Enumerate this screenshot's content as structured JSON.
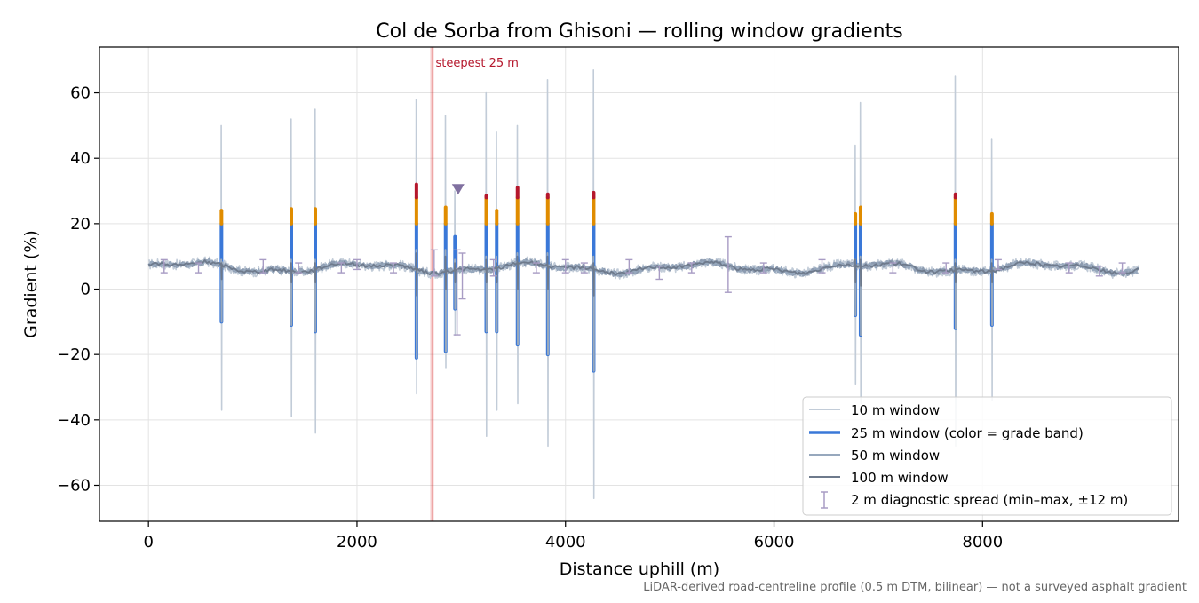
{
  "chart_data": {
    "type": "line",
    "title": "Col de Sorba from Ghisoni — rolling window gradients",
    "xlabel": "Distance uphill (m)",
    "ylabel": "Gradient (%)",
    "xlim": [
      -470,
      9880
    ],
    "ylim": [
      -71,
      74
    ],
    "x_ticks": [
      0,
      2000,
      4000,
      6000,
      8000
    ],
    "x_tick_labels": [
      "0",
      "2000",
      "4000",
      "6000",
      "8000"
    ],
    "y_ticks": [
      -60,
      -40,
      -20,
      0,
      20,
      40,
      60
    ],
    "y_tick_labels": [
      "−60",
      "−40",
      "−20",
      "0",
      "20",
      "40",
      "60"
    ],
    "grid": true,
    "x_range": [
      0,
      9500
    ],
    "baseline_gradient": 6.5,
    "steepest_marker": {
      "x": 2720,
      "label": "steepest 25 m",
      "color": "#d62728"
    },
    "triangle_marker": {
      "x": 2970,
      "y": 30.5,
      "color": "#8070a0"
    },
    "grade_bands": [
      {
        "min": -100,
        "max": 20,
        "color": "#3a78d8"
      },
      {
        "min": 20,
        "max": 28,
        "color": "#e08c00"
      },
      {
        "min": 28,
        "max": 100,
        "color": "#b5172c"
      }
    ],
    "spikes": [
      {
        "x": 700,
        "w10_max": 50,
        "w10_min": -37,
        "w25_max": 24,
        "w25_min": -10,
        "w50_max": 9,
        "w50_min": -10,
        "w100_max": 8,
        "w100_min": 3
      },
      {
        "x": 1370,
        "w10_max": 52,
        "w10_min": -39,
        "w25_max": 24.5,
        "w25_min": -11,
        "w50_max": 9,
        "w50_min": -11,
        "w100_max": 8,
        "w100_min": 2
      },
      {
        "x": 1600,
        "w10_max": 55,
        "w10_min": -44,
        "w25_max": 24.5,
        "w25_min": -13,
        "w50_max": 9,
        "w50_min": -13,
        "w100_max": 8,
        "w100_min": 2
      },
      {
        "x": 2570,
        "w10_max": 58,
        "w10_min": -32,
        "w25_max": 32,
        "w25_min": -21,
        "w50_max": 12,
        "w50_min": -21,
        "w100_max": 11,
        "w100_min": -2
      },
      {
        "x": 2850,
        "w10_max": 53,
        "w10_min": -24,
        "w25_max": 25,
        "w25_min": -19,
        "w50_max": 12,
        "w50_min": -19,
        "w100_max": 10,
        "w100_min": 0
      },
      {
        "x": 2940,
        "w10_max": 30,
        "w10_min": -14,
        "w25_max": 16,
        "w25_min": -6,
        "w50_max": 9,
        "w50_min": -6,
        "w100_max": 8,
        "w100_min": 2
      },
      {
        "x": 3240,
        "w10_max": 60,
        "w10_min": -45,
        "w25_max": 28.5,
        "w25_min": -13,
        "w50_max": 10,
        "w50_min": -13,
        "w100_max": 9,
        "w100_min": 2
      },
      {
        "x": 3340,
        "w10_max": 48,
        "w10_min": -37,
        "w25_max": 24,
        "w25_min": -13,
        "w50_max": 10,
        "w50_min": -13,
        "w100_max": 8,
        "w100_min": 2
      },
      {
        "x": 3540,
        "w10_max": 50,
        "w10_min": -35,
        "w25_max": 31,
        "w25_min": -17,
        "w50_max": 11,
        "w50_min": -17,
        "w100_max": 10,
        "w100_min": 0
      },
      {
        "x": 3830,
        "w10_max": 64,
        "w10_min": -48,
        "w25_max": 29,
        "w25_min": -20,
        "w50_max": 11,
        "w50_min": -20,
        "w100_max": 10,
        "w100_min": 0
      },
      {
        "x": 4270,
        "w10_max": 67,
        "w10_min": -64,
        "w25_max": 29.5,
        "w25_min": -25,
        "w50_max": 10,
        "w50_min": -25,
        "w100_max": 8,
        "w100_min": -2
      },
      {
        "x": 6780,
        "w10_max": 44,
        "w10_min": -29,
        "w25_max": 23,
        "w25_min": -8,
        "w50_max": 9,
        "w50_min": -8,
        "w100_max": 9,
        "w100_min": 2
      },
      {
        "x": 6830,
        "w10_max": 57,
        "w10_min": -35,
        "w25_max": 25,
        "w25_min": -14,
        "w50_max": 10,
        "w50_min": -14,
        "w100_max": 9,
        "w100_min": 1
      },
      {
        "x": 7740,
        "w10_max": 65,
        "w10_min": -48,
        "w25_max": 29,
        "w25_min": -12,
        "w50_max": 9,
        "w50_min": -12,
        "w100_max": 8,
        "w100_min": 2
      },
      {
        "x": 8090,
        "w10_max": 46,
        "w10_min": -34,
        "w25_max": 23,
        "w25_min": -11,
        "w50_max": 9,
        "w50_min": -11,
        "w100_max": 8,
        "w100_min": 2
      }
    ],
    "diagnostic_spread": [
      {
        "x": 150,
        "min": 5,
        "max": 9
      },
      {
        "x": 480,
        "min": 5,
        "max": 8
      },
      {
        "x": 1100,
        "min": 5,
        "max": 9
      },
      {
        "x": 1440,
        "min": 5,
        "max": 8
      },
      {
        "x": 1850,
        "min": 5,
        "max": 8
      },
      {
        "x": 2000,
        "min": 6,
        "max": 9
      },
      {
        "x": 2350,
        "min": 5,
        "max": 8
      },
      {
        "x": 2740,
        "min": 4,
        "max": 12
      },
      {
        "x": 2960,
        "min": -14,
        "max": 12
      },
      {
        "x": 3010,
        "min": -3,
        "max": 11
      },
      {
        "x": 3310,
        "min": 4,
        "max": 9
      },
      {
        "x": 3720,
        "min": 5,
        "max": 8
      },
      {
        "x": 4000,
        "min": 5,
        "max": 9
      },
      {
        "x": 4180,
        "min": 5,
        "max": 8
      },
      {
        "x": 4610,
        "min": 5,
        "max": 9
      },
      {
        "x": 4900,
        "min": 3,
        "max": 7
      },
      {
        "x": 5210,
        "min": 5,
        "max": 8
      },
      {
        "x": 5560,
        "min": -1,
        "max": 16
      },
      {
        "x": 5900,
        "min": 5,
        "max": 8
      },
      {
        "x": 6460,
        "min": 5,
        "max": 9
      },
      {
        "x": 7140,
        "min": 5,
        "max": 8
      },
      {
        "x": 7650,
        "min": 5,
        "max": 8
      },
      {
        "x": 8150,
        "min": 6,
        "max": 9
      },
      {
        "x": 8830,
        "min": 5,
        "max": 8
      },
      {
        "x": 9120,
        "min": 4,
        "max": 7
      },
      {
        "x": 9340,
        "min": 5,
        "max": 8
      }
    ],
    "series": [
      {
        "name": "10 m window",
        "color": "#c2ccd8",
        "style": "line"
      },
      {
        "name": "25 m window (color = grade band)",
        "color": "#3a78d8",
        "style": "thick-line"
      },
      {
        "name": "50 m window",
        "color": "#97a8bd",
        "style": "line"
      },
      {
        "name": "100 m window",
        "color": "#6e7a8c",
        "style": "line"
      },
      {
        "name": "2 m diagnostic spread (min–max, ±12 m)",
        "color": "#a89cc4",
        "style": "errorbar"
      }
    ],
    "legend_position": "lower-right",
    "footnote": "LiDAR-derived road-centreline profile (0.5 m DTM, bilinear) — not a surveyed asphalt gradient"
  }
}
